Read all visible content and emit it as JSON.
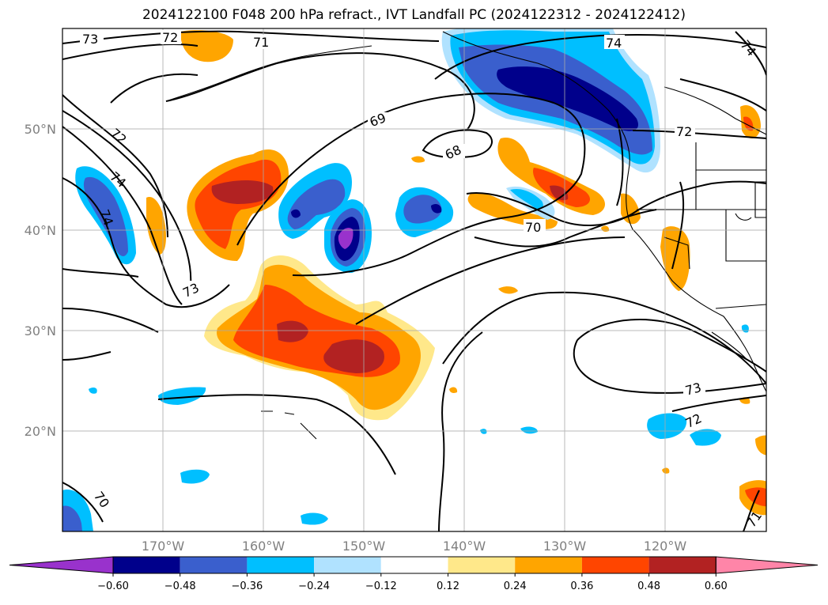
{
  "title": "2024122100 F048 200 hPa refract., IVT Landfall PC (2024122312 - 2024122412)",
  "lat_labels": [
    "50°N",
    "40°N",
    "30°N",
    "20°N"
  ],
  "lon_labels": [
    "170°W",
    "160°W",
    "150°W",
    "140°W",
    "130°W",
    "120°W"
  ],
  "contour_labels": [
    "73",
    "72",
    "71",
    "74",
    "72",
    "74",
    "69",
    "68",
    "72",
    "74",
    "74",
    "70",
    "73",
    "73",
    "72",
    "70",
    "71"
  ],
  "colorbar": {
    "ticks": [
      "−0.60",
      "−0.48",
      "−0.36",
      "−0.24",
      "−0.12",
      "0.12",
      "0.24",
      "0.36",
      "0.48",
      "0.60"
    ],
    "colors": [
      "#9932cc",
      "#00008b",
      "#3a5fcd",
      "#00bfff",
      "#b0e2ff",
      "#ffffff",
      "#ffe88a",
      "#ffa500",
      "#ff4500",
      "#b22222",
      "#ff85a8"
    ]
  }
}
